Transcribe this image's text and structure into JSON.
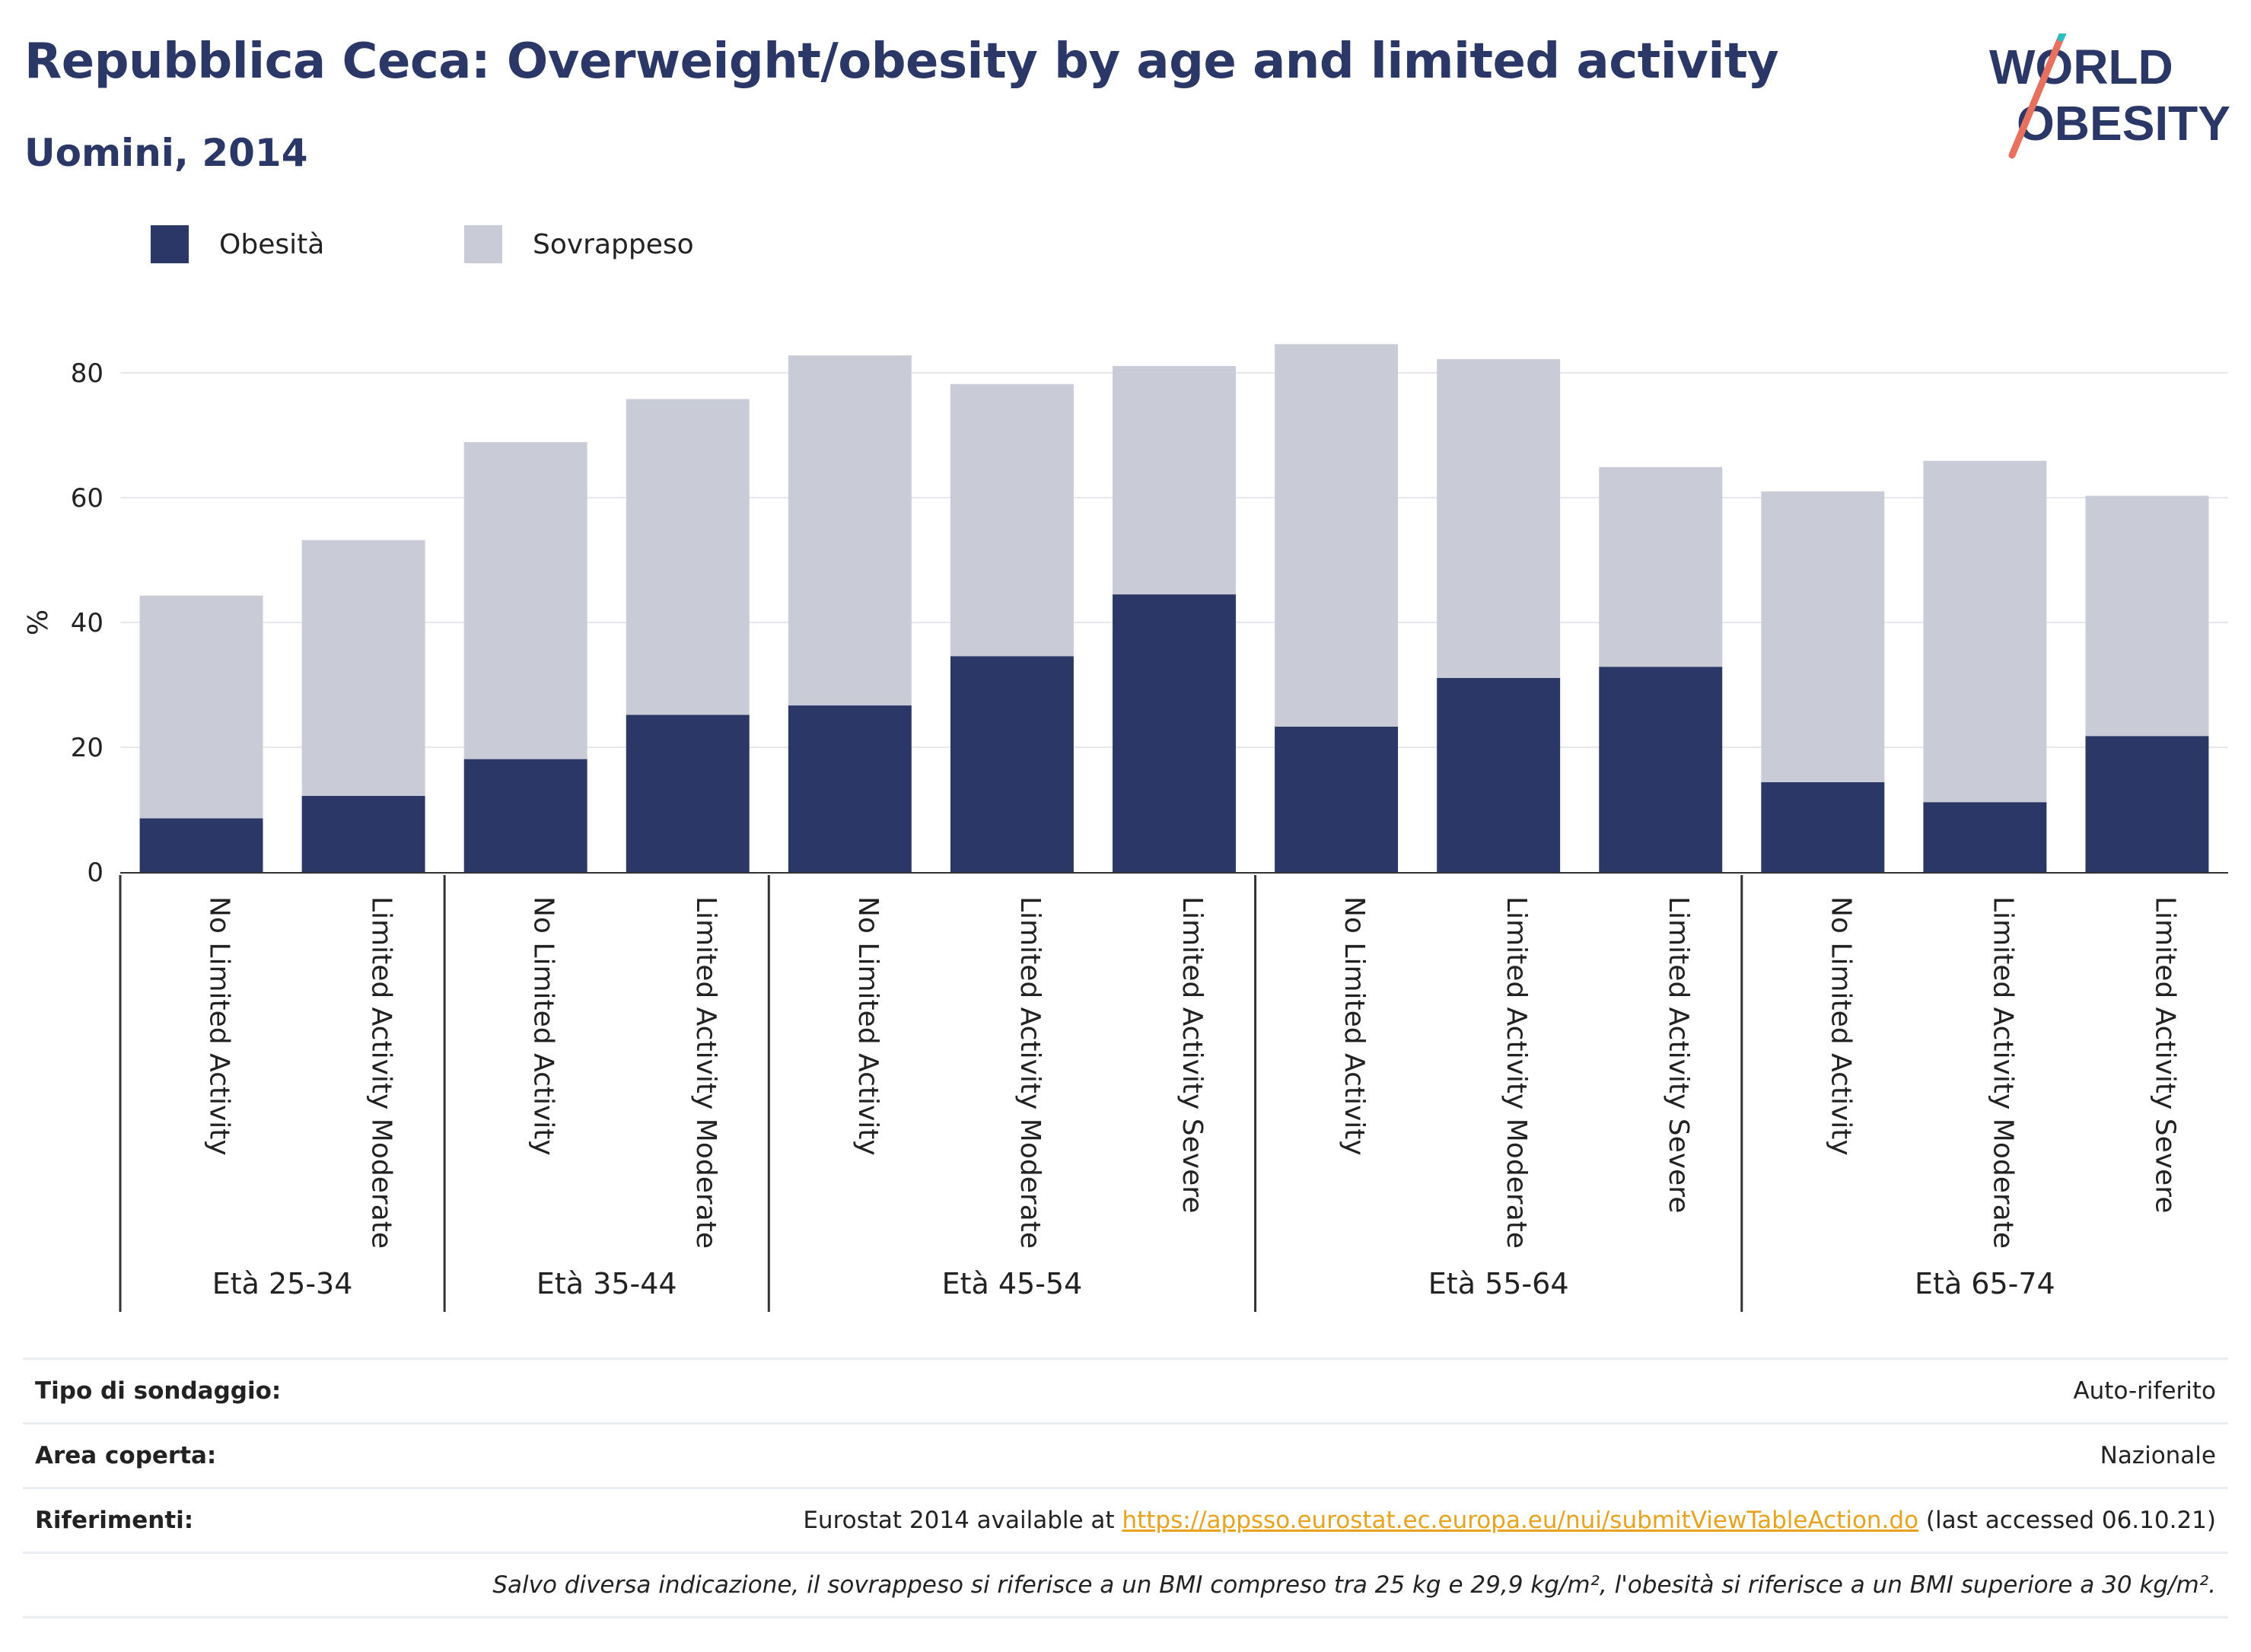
{
  "title": "Repubblica Ceca: Overweight/obesity by age and limited activity",
  "subtitle": "Uomini, 2014",
  "logo": {
    "line1": "WORLD",
    "line2": "OBESITY"
  },
  "legend": [
    {
      "label": "Obesità",
      "color": "#2b3766"
    },
    {
      "label": "Sovrappeso",
      "color": "#c9cbd7"
    }
  ],
  "chart_data": {
    "type": "bar",
    "stacked": true,
    "ylabel": "%",
    "ylim": [
      0,
      90
    ],
    "yticks": [
      0,
      20,
      40,
      60,
      80
    ],
    "grid": true,
    "legend_position": "top-left",
    "groups": [
      {
        "label": "Età 25-34",
        "categories": [
          "No Limited Activity",
          "Limited Activity Moderate"
        ]
      },
      {
        "label": "Età 35-44",
        "categories": [
          "No Limited Activity",
          "Limited Activity Moderate"
        ]
      },
      {
        "label": "Età 45-54",
        "categories": [
          "No Limited Activity",
          "Limited Activity Moderate",
          "Limited Activity Severe"
        ]
      },
      {
        "label": "Età 55-64",
        "categories": [
          "No Limited Activity",
          "Limited Activity Moderate",
          "Limited Activity Severe"
        ]
      },
      {
        "label": "Età 65-74",
        "categories": [
          "No Limited Activity",
          "Limited Activity Moderate",
          "Limited Activity Severe"
        ]
      }
    ],
    "series": [
      {
        "name": "Obesità",
        "color": "#2b3766",
        "values": [
          8.6,
          12.2,
          18.1,
          25.2,
          26.7,
          34.6,
          44.5,
          23.3,
          31.1,
          32.9,
          14.4,
          11.2,
          21.8
        ]
      },
      {
        "name": "Sovrappeso",
        "color": "#c9cbd7",
        "values": [
          35.7,
          41.0,
          50.8,
          50.6,
          56.1,
          43.6,
          36.6,
          61.3,
          51.1,
          32.0,
          46.6,
          54.7,
          38.5
        ]
      }
    ]
  },
  "footer": {
    "survey_label": "Tipo di sondaggio:",
    "survey_value": "Auto-riferito",
    "area_label": "Area coperta:",
    "area_value": "Nazionale",
    "ref_label": "Riferimenti:",
    "ref_prefix": "Eurostat 2014 available at ",
    "ref_link": "https://appsso.eurostat.ec.europa.eu/nui/submitViewTableAction.do",
    "ref_suffix": " (last accessed 06.10.21)",
    "note": "Salvo diversa indicazione, il sovrappeso si riferisce a un BMI compreso tra 25 kg e 29,9 kg/m², l'obesità si riferisce a un BMI superiore a 30 kg/m²."
  }
}
